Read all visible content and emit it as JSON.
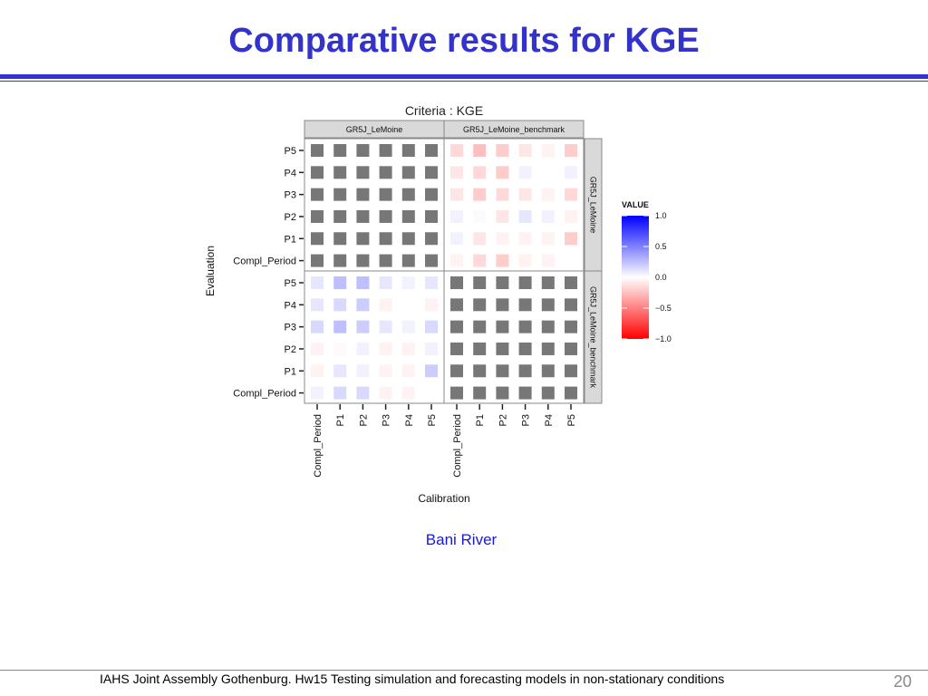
{
  "slide": {
    "title": "Comparative results for KGE",
    "caption": "Bani River",
    "footer": "IAHS Joint Assembly Gothenburg. Hw15 Testing simulation and forecasting models in non-stationary conditions",
    "page_number": "20"
  },
  "chart_data": {
    "type": "heatmap",
    "title": "Criteria : KGE",
    "xlabel": "Calibration",
    "ylabel": "Evaluation",
    "col_facets": [
      "GR5J_LeMoine",
      "GR5J_LeMoine_benchmark"
    ],
    "row_facets": [
      "GR5J_LeMoine",
      "GR5J_LeMoine_benchmark"
    ],
    "x_periods": [
      "Compl_Period",
      "P1",
      "P2",
      "P3",
      "P4",
      "P5"
    ],
    "y_periods": [
      "P5",
      "P4",
      "P3",
      "P2",
      "P1",
      "Compl_Period"
    ],
    "self_comparison_color": "#777777",
    "legend": {
      "title": "VALUE",
      "ticks": [
        1.0,
        0.5,
        0.0,
        -0.5,
        -1.0
      ],
      "tick_labels": [
        "1.0",
        "0.5",
        "0.0",
        "−0.5",
        "−1.0"
      ],
      "high_color": "#0000ff",
      "mid_color": "#ffffff",
      "low_color": "#ff0000",
      "placement": "right"
    },
    "panels": [
      {
        "row": 0,
        "col": 0,
        "self": true,
        "values": null
      },
      {
        "row": 0,
        "col": 1,
        "self": false,
        "values": [
          [
            -0.15,
            -0.25,
            -0.2,
            -0.1,
            -0.05,
            -0.2
          ],
          [
            -0.1,
            -0.15,
            -0.2,
            0.05,
            0.0,
            0.05
          ],
          [
            -0.1,
            -0.2,
            -0.15,
            -0.1,
            -0.05,
            -0.15
          ],
          [
            0.05,
            0.02,
            -0.1,
            0.1,
            0.05,
            -0.05
          ],
          [
            0.05,
            -0.1,
            -0.05,
            -0.05,
            -0.05,
            -0.2
          ],
          [
            -0.05,
            -0.15,
            -0.2,
            -0.05,
            -0.05,
            0.0
          ]
        ]
      },
      {
        "row": 1,
        "col": 0,
        "self": false,
        "values": [
          [
            0.1,
            0.25,
            0.25,
            0.1,
            0.05,
            0.1
          ],
          [
            0.1,
            0.15,
            0.2,
            -0.05,
            0.0,
            -0.05
          ],
          [
            0.15,
            0.25,
            0.2,
            0.1,
            0.05,
            0.15
          ],
          [
            -0.05,
            -0.02,
            0.05,
            -0.05,
            -0.05,
            0.05
          ],
          [
            -0.05,
            0.1,
            0.05,
            -0.05,
            -0.05,
            0.2
          ],
          [
            0.05,
            0.15,
            0.15,
            -0.05,
            -0.05,
            0.0
          ]
        ]
      },
      {
        "row": 1,
        "col": 1,
        "self": true,
        "values": null
      }
    ]
  }
}
